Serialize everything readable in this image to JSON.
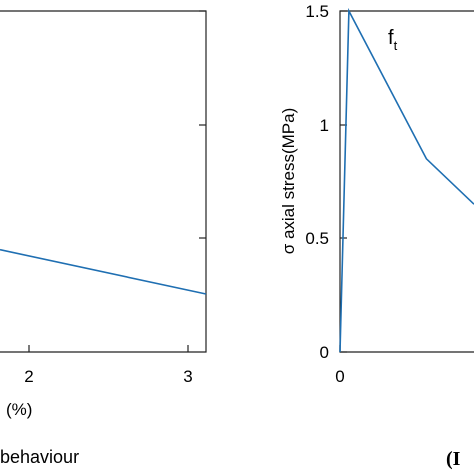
{
  "chart_data": [
    {
      "type": "line",
      "title": "",
      "xlabel": "(%)",
      "ylabel": "",
      "x_ticks": [
        "2",
        "3"
      ],
      "xlim": [
        1.3,
        3.1
      ],
      "ylim": [
        0,
        1.5
      ],
      "series": [
        {
          "x": [
            1.3,
            3.1
          ],
          "y": [
            0.45,
            0.255
          ],
          "color": "#1f6fb2"
        }
      ],
      "caption": "behaviour"
    },
    {
      "type": "line",
      "title": "",
      "xlabel": "",
      "ylabel": "σ axial stress(MPa)",
      "x_ticks": [
        "0"
      ],
      "y_ticks": [
        "0",
        "0.5",
        "1",
        "1.5"
      ],
      "xlim": [
        0,
        0.9
      ],
      "ylim": [
        0,
        1.5
      ],
      "annotation": {
        "base": "f",
        "subscript": "t"
      },
      "series": [
        {
          "x": [
            0,
            0.06,
            0.58,
            0.9
          ],
          "y": [
            0,
            1.5,
            0.85,
            0.65
          ],
          "color": "#1f6fb2"
        }
      ],
      "caption": "(I"
    }
  ]
}
